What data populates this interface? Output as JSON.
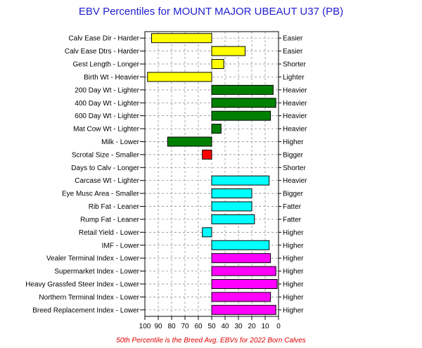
{
  "chart_data": {
    "type": "bar",
    "title": "EBV Percentiles for MOUNT MAJOR UBEAUT U37 (PB)",
    "footnote": "50th Percentile is the Breed Avg. EBVs for 2022 Born Calves",
    "xlim": [
      100,
      0
    ],
    "x_ticks": [
      "100",
      "90",
      "80",
      "70",
      "60",
      "50",
      "40",
      "30",
      "20",
      "10",
      "0"
    ],
    "baseline": 50,
    "grid": true,
    "categories": [
      "Calv Ease Dir - Harder",
      "Calv Ease Dtrs - Harder",
      "Gest Length - Longer",
      "Birth Wt - Heavier",
      "200 Day Wt - Lighter",
      "400 Day Wt - Lighter",
      "600 Day Wt - Lighter",
      "Mat Cow Wt - Lighter",
      "Milk - Lower",
      "Scrotal Size - Smaller",
      "Days to Calv - Longer",
      "Carcase Wt - Lighter",
      "Eye Musc Area - Smaller",
      "Rib Fat - Leaner",
      "Rump Fat - Leaner",
      "Retail Yield - Lower",
      "IMF - Lower",
      "Vealer Terminal Index - Lower",
      "Supermarket Index - Lower",
      "Heavy Grassfed Steer Index - Lower",
      "Northern Terminal Index - Lower",
      "Breed Replacement Index - Lower"
    ],
    "right_labels": [
      "Easier",
      "Easier",
      "Shorter",
      "Lighter",
      "Heavier",
      "Heavier",
      "Heavier",
      "Heavier",
      "Higher",
      "Bigger",
      "Shorter",
      "Heavier",
      "Bigger",
      "Fatter",
      "Fatter",
      "Higher",
      "Higher",
      "Higher",
      "Higher",
      "Higher",
      "Higher",
      "Higher"
    ],
    "values": [
      95,
      25,
      41,
      98,
      4,
      2,
      6,
      43,
      83,
      57,
      null,
      7,
      20,
      20,
      18,
      57,
      7,
      6,
      2,
      1,
      6,
      2
    ],
    "colors": [
      "#ffff00",
      "#ffff00",
      "#ffff00",
      "#ffff00",
      "#008000",
      "#008000",
      "#008000",
      "#008000",
      "#008000",
      "#ff0000",
      "#ff0000",
      "#00ffff",
      "#00ffff",
      "#00ffff",
      "#00ffff",
      "#00ffff",
      "#00ffff",
      "#ff00ff",
      "#ff00ff",
      "#ff00ff",
      "#ff00ff",
      "#ff00ff"
    ]
  }
}
